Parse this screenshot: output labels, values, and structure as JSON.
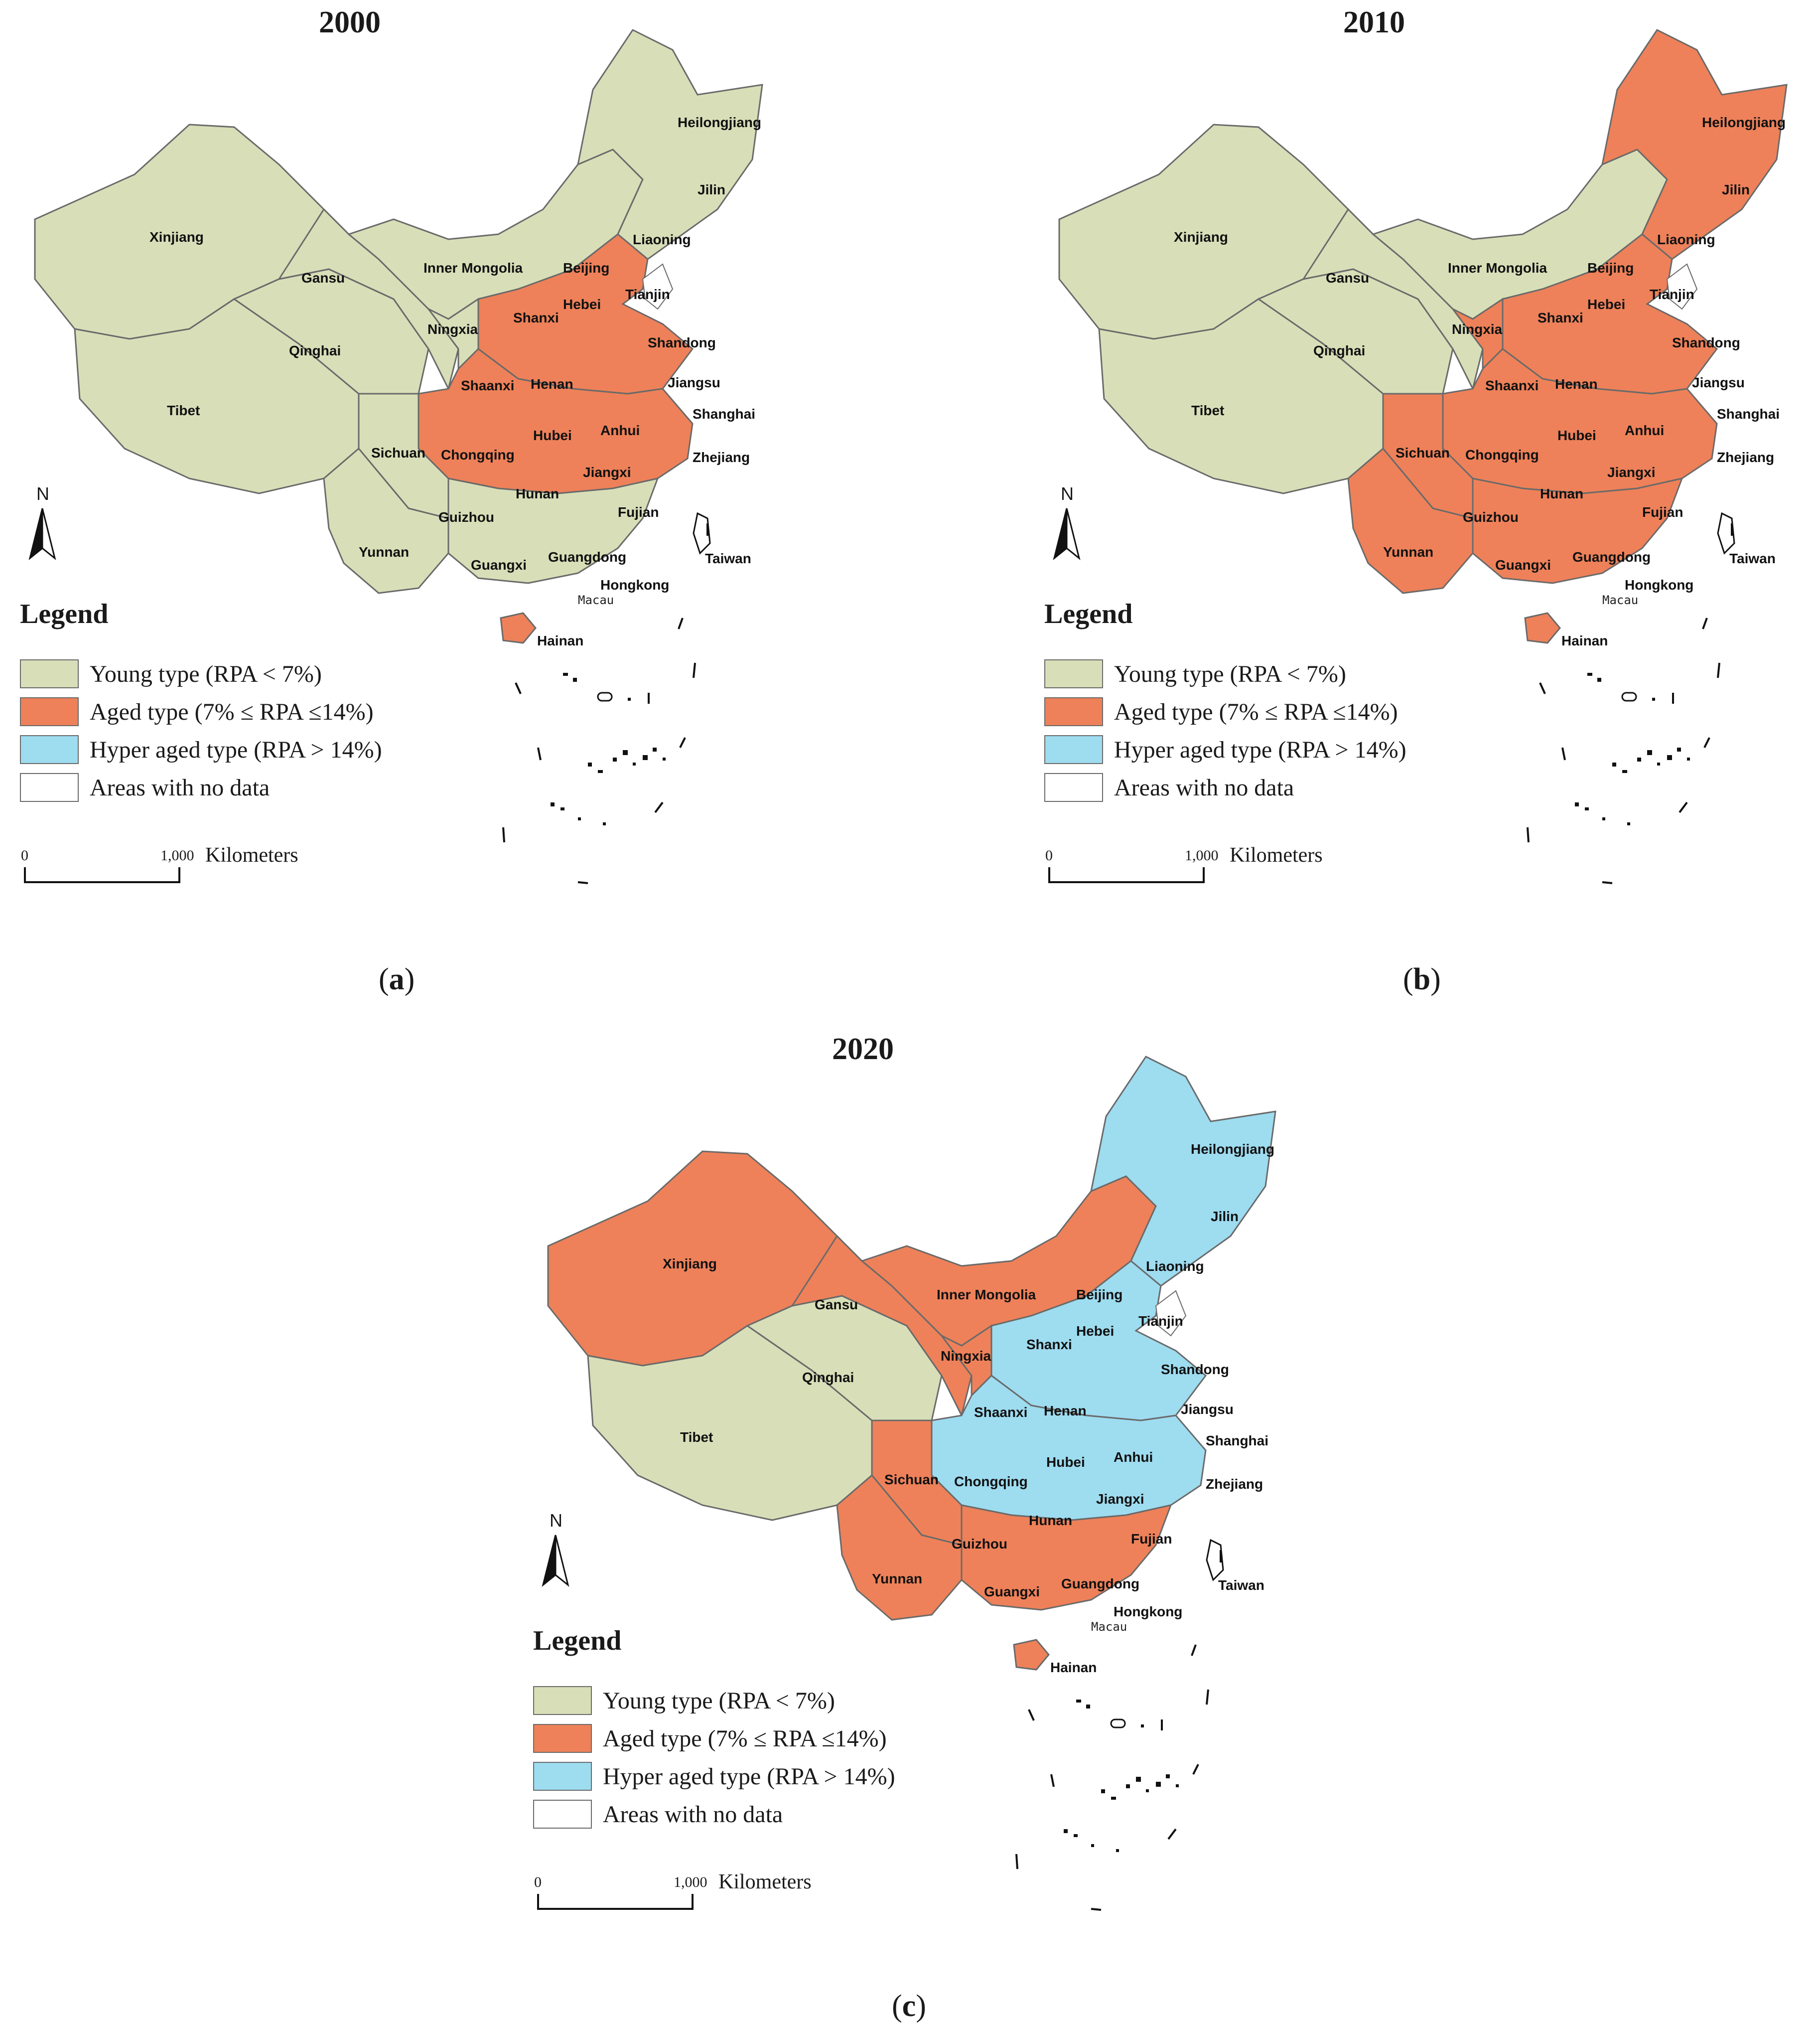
{
  "colors": {
    "young": "#d8dfb8",
    "aged": "#ee8159",
    "hyper": "#9edcf0",
    "nodata": "#ffffff",
    "border": "#6a6a6a"
  },
  "legend": {
    "title": "Legend",
    "items": [
      {
        "key": "young",
        "label": "Young type (RPA < 7%)"
      },
      {
        "key": "aged",
        "label": "Aged type (7% ≤ RPA ≤14%)"
      },
      {
        "key": "hyper",
        "label": "Hyper aged type (RPA > 14%)"
      },
      {
        "key": "nodata",
        "label": "Areas with no data"
      }
    ]
  },
  "north_label": "N",
  "scale": {
    "zero": "0",
    "max": "1,000",
    "unit": "Kilometers"
  },
  "provinces": {
    "heilongjiang": "Heilongjiang",
    "jilin": "Jilin",
    "liaoning": "Liaoning",
    "xinjiang": "Xinjiang",
    "gansu": "Gansu",
    "inner_mongolia": "Inner Mongolia",
    "beijing": "Beijing",
    "tianjin": "Tianjin",
    "hebei": "Hebei",
    "shanxi": "Shanxi",
    "ningxia": "Ningxia",
    "qinghai": "Qinghai",
    "shandong": "Shandong",
    "tibet": "Tibet",
    "shaanxi": "Shaanxi",
    "henan": "Henan",
    "jiangsu": "Jiangsu",
    "shanghai": "Shanghai",
    "anhui": "Anhui",
    "hubei": "Hubei",
    "sichuan": "Sichuan",
    "chongqing": "Chongqing",
    "zhejiang": "Zhejiang",
    "jiangxi": "Jiangxi",
    "hunan": "Hunan",
    "guizhou": "Guizhou",
    "fujian": "Fujian",
    "yunnan": "Yunnan",
    "guangxi": "Guangxi",
    "guangdong": "Guangdong",
    "taiwan": "Taiwan",
    "hongkong": "Hongkong",
    "macau": "Macau",
    "hainan": "Hainan"
  },
  "panels": [
    {
      "year": "2000",
      "caption_letter": "a",
      "regions": {
        "xinjiang": "young",
        "tibet": "young",
        "qinghai": "young",
        "gansu": "young",
        "inner_mongolia": "young",
        "northeast": "young",
        "ningxia": "young",
        "north_china": "aged",
        "central": "aged",
        "south": "young",
        "southwest": "young",
        "yunnan": "young",
        "hainan": "aged"
      }
    },
    {
      "year": "2010",
      "caption_letter": "b",
      "regions": {
        "xinjiang": "young",
        "tibet": "young",
        "qinghai": "young",
        "gansu": "young",
        "inner_mongolia": "young",
        "northeast": "aged",
        "ningxia": "aged",
        "north_china": "aged",
        "central": "aged",
        "south": "aged",
        "southwest": "aged",
        "yunnan": "aged",
        "hainan": "aged"
      }
    },
    {
      "year": "2020",
      "caption_letter": "c",
      "regions": {
        "xinjiang": "aged",
        "tibet": "young",
        "qinghai": "young",
        "gansu": "aged",
        "inner_mongolia": "aged",
        "northeast": "hyper",
        "ningxia": "aged",
        "north_china": "hyper",
        "central": "hyper",
        "south": "aged",
        "southwest": "aged",
        "yunnan": "aged",
        "hainan": "aged"
      }
    }
  ]
}
